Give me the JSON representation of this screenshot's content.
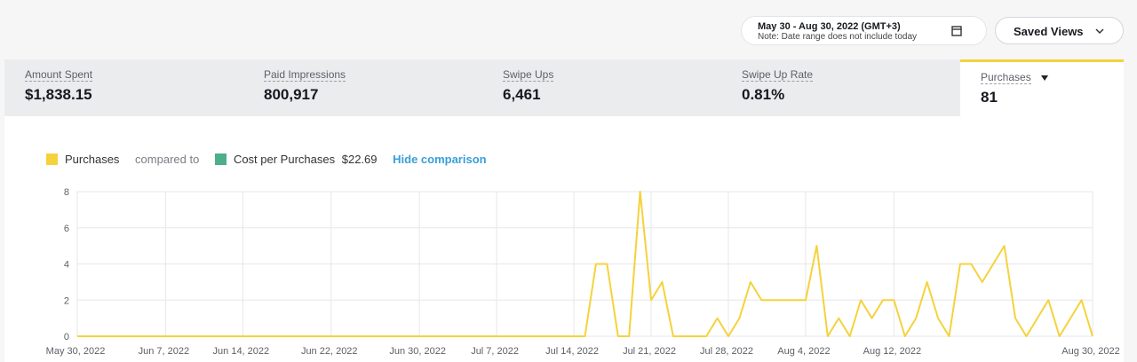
{
  "header": {
    "date_range": "May 30 - Aug 30, 2022 (GMT+3)",
    "date_note": "Note: Date range does not include today",
    "saved_views": "Saved Views"
  },
  "metrics": [
    {
      "label": "Amount Spent",
      "value": "$1,838.15"
    },
    {
      "label": "Paid Impressions",
      "value": "800,917"
    },
    {
      "label": "Swipe Ups",
      "value": "6,461"
    },
    {
      "label": "Swipe Up Rate",
      "value": "0.81%"
    },
    {
      "label": "Purchases",
      "value": "81"
    }
  ],
  "legend": {
    "compared_to": "compared to",
    "comparison_name": "Cost per Purchases",
    "comparison_value": "$22.69",
    "hide": "Hide comparison"
  },
  "chart_data": {
    "type": "line",
    "categories": [
      "May 30, 2022",
      null,
      null,
      null,
      null,
      null,
      null,
      null,
      "Jun 7, 2022",
      null,
      null,
      null,
      null,
      null,
      null,
      "Jun 14, 2022",
      null,
      null,
      null,
      null,
      null,
      null,
      null,
      "Jun 22, 2022",
      null,
      null,
      null,
      null,
      null,
      null,
      null,
      "Jun 30, 2022",
      null,
      null,
      null,
      null,
      null,
      null,
      "Jul 7, 2022",
      null,
      null,
      null,
      null,
      null,
      null,
      "Jul 14, 2022",
      null,
      null,
      null,
      null,
      null,
      null,
      "Jul 21, 2022",
      null,
      null,
      null,
      null,
      null,
      null,
      "Jul 28, 2022",
      null,
      null,
      null,
      null,
      null,
      null,
      "Aug 4, 2022",
      null,
      null,
      null,
      null,
      null,
      null,
      null,
      "Aug 12, 2022",
      null,
      null,
      null,
      null,
      null,
      null,
      null,
      null,
      null,
      null,
      null,
      null,
      null,
      null,
      null,
      null,
      null,
      "Aug 30, 2022"
    ],
    "series": [
      {
        "name": "Purchases",
        "color": "#f5d23c",
        "values": [
          0,
          0,
          0,
          0,
          0,
          0,
          0,
          0,
          0,
          0,
          0,
          0,
          0,
          0,
          0,
          0,
          0,
          0,
          0,
          0,
          0,
          0,
          0,
          0,
          0,
          0,
          0,
          0,
          0,
          0,
          0,
          0,
          0,
          0,
          0,
          0,
          0,
          0,
          0,
          0,
          0,
          0,
          0,
          0,
          0,
          0,
          0,
          4,
          4,
          0,
          0,
          8,
          2,
          3,
          0,
          0,
          0,
          0,
          1,
          0,
          1,
          3,
          2,
          2,
          2,
          2,
          2,
          5,
          0,
          1,
          0,
          2,
          1,
          2,
          2,
          0,
          1,
          3,
          1,
          0,
          4,
          4,
          3,
          4,
          5,
          1,
          0,
          1,
          2,
          0,
          1,
          2,
          0
        ]
      }
    ],
    "comparison_color": "#4caf8a",
    "ylim": [
      0,
      8
    ],
    "yticks": [
      0,
      2,
      4,
      6,
      8
    ],
    "grid": true
  }
}
